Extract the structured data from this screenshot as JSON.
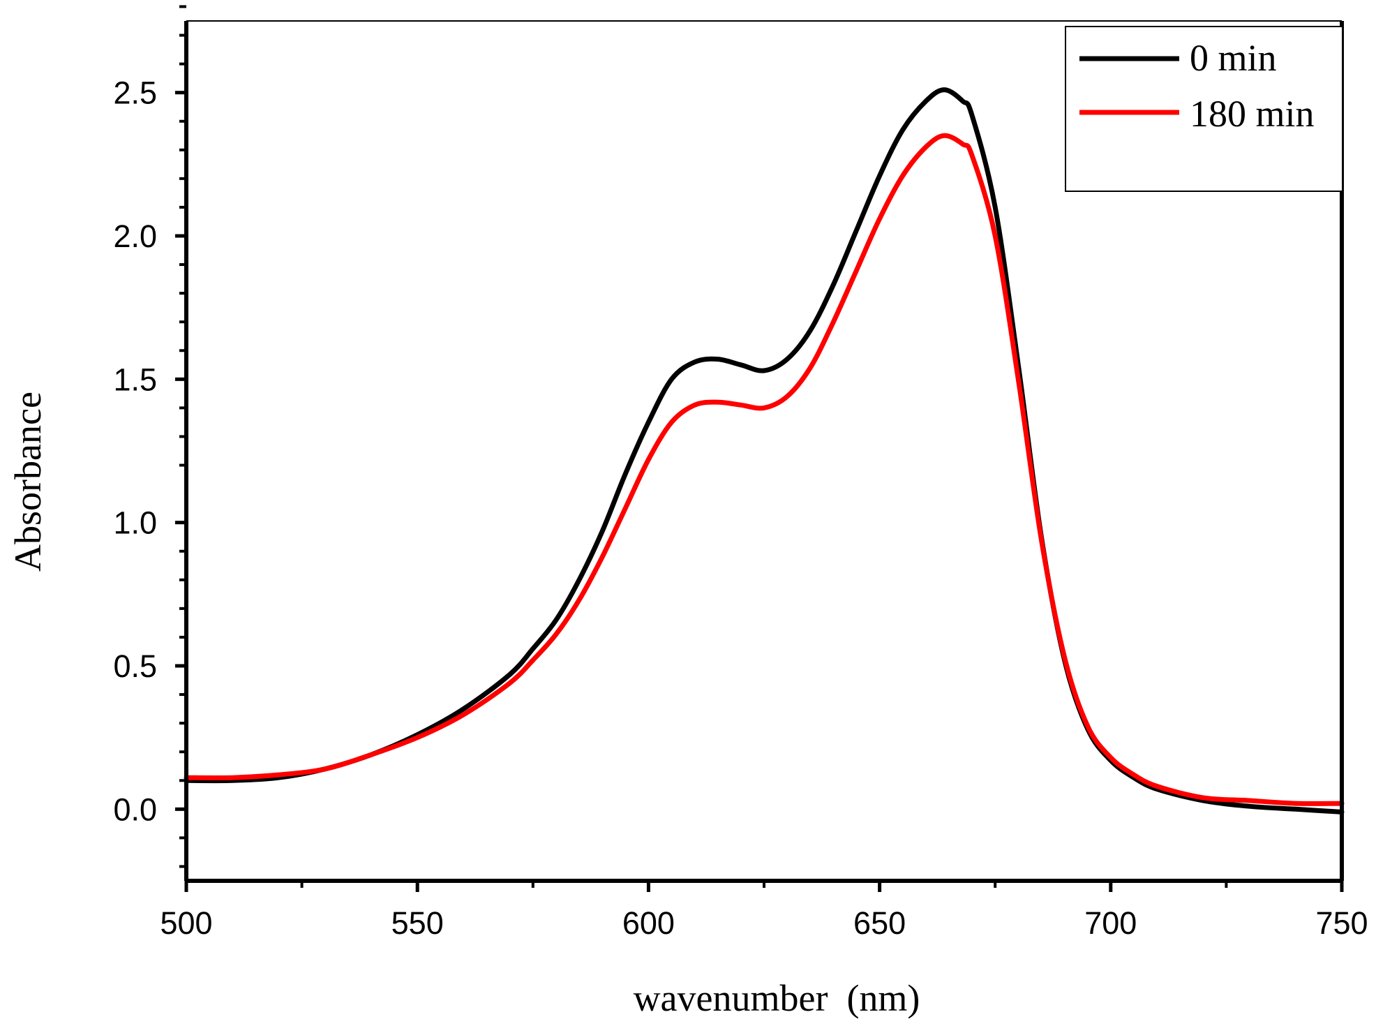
{
  "chart_data": {
    "type": "line",
    "title": "",
    "xlabel": "wavenumber  (nm)",
    "ylabel": "Absorbance",
    "xlim": [
      500,
      750
    ],
    "ylim": [
      -0.25,
      2.75
    ],
    "xticks": [
      500,
      550,
      600,
      650,
      700,
      750
    ],
    "xtick_labels": [
      "500",
      "550",
      "600",
      "650",
      "700",
      "750"
    ],
    "yticks": [
      0.0,
      0.5,
      1.0,
      1.5,
      2.0,
      2.5
    ],
    "ytick_labels": [
      "0.0",
      "0.5",
      "1.0",
      "1.5",
      "2.0",
      "2.5"
    ],
    "grid": false,
    "legend_position": "top-right",
    "series": [
      {
        "name": "0 min",
        "color": "#000000",
        "x": [
          500,
          510,
          520,
          530,
          540,
          550,
          560,
          570,
          575,
          580,
          585,
          590,
          595,
          600,
          605,
          610,
          615,
          620,
          625,
          630,
          635,
          640,
          645,
          650,
          655,
          660,
          664,
          668,
          670,
          675,
          680,
          685,
          690,
          695,
          700,
          705,
          710,
          720,
          730,
          740,
          750
        ],
        "y": [
          0.1,
          0.1,
          0.11,
          0.14,
          0.19,
          0.26,
          0.35,
          0.47,
          0.56,
          0.66,
          0.8,
          0.97,
          1.17,
          1.35,
          1.5,
          1.56,
          1.57,
          1.55,
          1.53,
          1.57,
          1.67,
          1.83,
          2.02,
          2.21,
          2.37,
          2.47,
          2.51,
          2.47,
          2.42,
          2.1,
          1.55,
          0.95,
          0.52,
          0.28,
          0.17,
          0.11,
          0.07,
          0.03,
          0.01,
          0.0,
          -0.01
        ]
      },
      {
        "name": "180 min",
        "color": "#ff0000",
        "x": [
          500,
          510,
          520,
          530,
          540,
          550,
          560,
          570,
          575,
          580,
          585,
          590,
          595,
          600,
          605,
          610,
          615,
          620,
          625,
          630,
          635,
          640,
          645,
          650,
          655,
          660,
          664,
          668,
          670,
          675,
          680,
          685,
          690,
          695,
          700,
          705,
          710,
          720,
          730,
          740,
          750
        ],
        "y": [
          0.11,
          0.11,
          0.12,
          0.14,
          0.19,
          0.25,
          0.33,
          0.44,
          0.52,
          0.61,
          0.73,
          0.88,
          1.05,
          1.22,
          1.35,
          1.41,
          1.42,
          1.41,
          1.4,
          1.44,
          1.54,
          1.7,
          1.88,
          2.06,
          2.21,
          2.31,
          2.35,
          2.32,
          2.28,
          2.0,
          1.5,
          0.94,
          0.53,
          0.29,
          0.18,
          0.12,
          0.08,
          0.04,
          0.03,
          0.02,
          0.02
        ]
      }
    ]
  }
}
